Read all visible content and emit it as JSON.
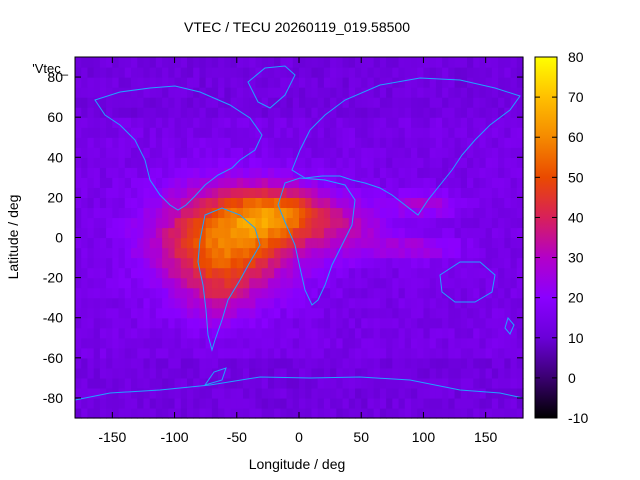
{
  "chart_data": {
    "type": "heatmap",
    "title": "VTEC / TECU 20260119_019.58500",
    "xlabel": "Longitude / deg",
    "ylabel": "Latitude / deg",
    "xlim": [
      -180,
      180
    ],
    "ylim": [
      -90,
      90
    ],
    "x_ticks": [
      -150,
      -100,
      -50,
      0,
      50,
      100,
      150
    ],
    "y_ticks": [
      -80,
      -60,
      -40,
      -20,
      0,
      20,
      40,
      60,
      80
    ],
    "legend_label": "'Vtec_",
    "legend_placement": "top-left",
    "colorbar": {
      "range": [
        -10,
        80
      ],
      "ticks": [
        80,
        70,
        60,
        50,
        40,
        30,
        20,
        10,
        0,
        -10
      ],
      "colors": [
        "#000000",
        "#3a0070",
        "#6a00d8",
        "#8a00ff",
        "#b300c8",
        "#d8205a",
        "#ea4a00",
        "#f58a00",
        "#ffc000",
        "#ffff00"
      ]
    },
    "blobs": [
      {
        "lon": -60,
        "lat": -2,
        "sig_lon": 55,
        "sig_lat": 26,
        "amp": 42
      },
      {
        "lon": -15,
        "lat": 12,
        "sig_lon": 40,
        "sig_lat": 14,
        "amp": 30
      },
      {
        "lon": 40,
        "lat": 5,
        "sig_lon": 35,
        "sig_lat": 14,
        "amp": 14
      },
      {
        "lon": 100,
        "lat": 17,
        "sig_lon": 28,
        "sig_lat": 6,
        "amp": 14
      },
      {
        "lon": 95,
        "lat": -5,
        "sig_lon": 35,
        "sig_lat": 6,
        "amp": 12
      },
      {
        "lon": -65,
        "lat": -30,
        "sig_lon": 25,
        "sig_lat": 15,
        "amp": 10
      }
    ],
    "background_value": 14
  }
}
